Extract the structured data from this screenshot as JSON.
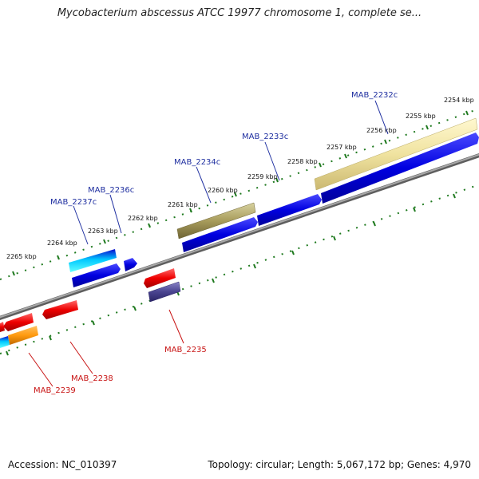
{
  "title": "Mycobacterium abscessus ATCC 19977 chromosome 1, complete se...",
  "footer": {
    "accession": "Accession: NC_010397",
    "summary": "Topology: circular; Length: 5,067,172 bp; Genes: 4,970"
  },
  "colors": {
    "backbone": "#8a8a8a",
    "ticks": "#1f7a1f",
    "forward_label": "#1f2fa0",
    "reverse_label": "#c81414"
  },
  "kbp_labels": [
    {
      "id": "2254",
      "text": "2254 kbp"
    },
    {
      "id": "2255",
      "text": "2255 kbp"
    },
    {
      "id": "2256",
      "text": "2256 kbp"
    },
    {
      "id": "2257",
      "text": "2257 kbp"
    },
    {
      "id": "2258",
      "text": "2258 kbp"
    },
    {
      "id": "2259",
      "text": "2259 kbp"
    },
    {
      "id": "2260",
      "text": "2260 kbp"
    },
    {
      "id": "2261",
      "text": "2261 kbp"
    },
    {
      "id": "2262",
      "text": "2262 kbp"
    },
    {
      "id": "2263",
      "text": "2263 kbp"
    },
    {
      "id": "2264",
      "text": "2264 kbp"
    },
    {
      "id": "2265",
      "text": "2265 kbp"
    }
  ],
  "gene_labels": [
    {
      "id": "MAB_2232c",
      "text": "MAB_2232c",
      "strand": "forward"
    },
    {
      "id": "MAB_2233c",
      "text": "MAB_2233c",
      "strand": "forward"
    },
    {
      "id": "MAB_2234c",
      "text": "MAB_2234c",
      "strand": "forward"
    },
    {
      "id": "MAB_2236c",
      "text": "MAB_2236c",
      "strand": "forward"
    },
    {
      "id": "MAB_2237c",
      "text": "MAB_2237c",
      "strand": "forward"
    },
    {
      "id": "MAB_2235",
      "text": "MAB_2235",
      "strand": "reverse"
    },
    {
      "id": "MAB_2238",
      "text": "MAB_2238",
      "strand": "reverse"
    },
    {
      "id": "MAB_2239",
      "text": "MAB_2239",
      "strand": "reverse"
    }
  ]
}
